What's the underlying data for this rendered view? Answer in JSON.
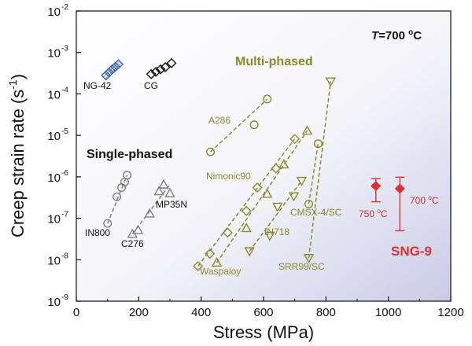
{
  "chart_data": {
    "type": "scatter",
    "xlabel": "Stress (MPa)",
    "ylabel_main": "Creep strain rate (s",
    "ylabel_sup": "-1",
    "ylabel_close": ")",
    "xlim": [
      0,
      1200
    ],
    "ylim_log10": [
      -9,
      -2
    ],
    "y_scale": "log",
    "x_ticks": [
      0,
      200,
      400,
      600,
      800,
      1000,
      1200
    ],
    "x_tick_labels": [
      "0",
      "200",
      "400",
      "600",
      "800",
      "1000",
      "1200"
    ],
    "y_tick_exponents": [
      -9,
      -8,
      -7,
      -6,
      -5,
      -4,
      -3,
      -2
    ],
    "y_tick_labels": [
      "10",
      "10",
      "10",
      "10",
      "10",
      "10",
      "10",
      "10"
    ],
    "y_tick_sups": [
      "-9",
      "-8",
      "-7",
      "-6",
      "-5",
      "-4",
      "-3",
      "-2"
    ],
    "annotations": {
      "temperature_T": "T",
      "temperature_rest": "=700 ",
      "temperature_o": "o",
      "temperature_c": "C",
      "multi_phased": "Multi-phased",
      "single_phased": "Single-phased",
      "sng9": "SNG-9",
      "t750": "750 ",
      "t750_o": "o",
      "t750_c": "C",
      "t700": "700 ",
      "t700_o": "o",
      "t700_c": "C"
    },
    "colors": {
      "black": "#111111",
      "blue": "#3a5fb0",
      "gray": "#808080",
      "olive": "#8a8a2a",
      "red": "#e03030",
      "red_text": "#d03030"
    },
    "series": [
      {
        "label": "NG-42",
        "marker": "diamond",
        "color": "blue",
        "fill": "hatch",
        "x": [
          95,
          105,
          115,
          125,
          135
        ],
        "y": [
          0.00028,
          0.00033,
          0.00039,
          0.00045,
          0.00052
        ]
      },
      {
        "label": "CG",
        "marker": "diamond",
        "color": "black",
        "x": [
          240,
          255,
          270,
          285,
          305
        ],
        "y": [
          0.0003,
          0.00034,
          0.00039,
          0.00044,
          0.00055
        ]
      },
      {
        "label": "A286",
        "marker": "circle",
        "color": "olive",
        "x": [
          430,
          570,
          612
        ],
        "y": [
          4e-06,
          1.8e-05,
          7.5e-05
        ]
      },
      {
        "label": "IN800",
        "marker": "circle",
        "color": "gray",
        "x": [
          100,
          130,
          145,
          155,
          163
        ],
        "y": [
          7.5e-08,
          3.3e-07,
          5.5e-07,
          7.5e-07,
          1.1e-06
        ]
      },
      {
        "label": "C276",
        "marker": "triangle-up",
        "color": "gray",
        "x": [
          180,
          198
        ],
        "y": [
          4.2e-08,
          5.2e-08
        ]
      },
      {
        "label": "MP35N",
        "marker": "triangle-up",
        "color": "gray",
        "x": [
          235,
          265,
          280,
          300
        ],
        "y": [
          1.3e-07,
          4.5e-07,
          6.5e-07,
          4e-07
        ]
      },
      {
        "label": "Nimonic90",
        "marker": "diamond",
        "color": "olive",
        "x": [
          390,
          428,
          485,
          545,
          580,
          640,
          700
        ],
        "y": [
          7e-09,
          1.4e-08,
          4.5e-08,
          1.5e-07,
          5.5e-07,
          1.6e-06,
          8.2e-06
        ]
      },
      {
        "label": "Waspaloy",
        "marker": "triangle-up",
        "color": "olive",
        "x": [
          450,
          545,
          612,
          665,
          740
        ],
        "y": [
          8.5e-09,
          5.8e-08,
          3.9e-07,
          2e-06,
          1.3e-05
        ]
      },
      {
        "label": "IN718",
        "marker": "triangle-down",
        "color": "olive",
        "x": [
          555,
          620,
          645,
          697,
          722
        ],
        "y": [
          1.6e-08,
          3.8e-08,
          1.9e-07,
          3.4e-07,
          8e-07
        ]
      },
      {
        "label": "CMSX-4/SC",
        "marker": "circle",
        "color": "olive",
        "x": [
          745,
          775
        ],
        "y": [
          2.2e-07,
          6.3e-06
        ]
      },
      {
        "label": "SRR99/SC",
        "marker": "triangle-down",
        "color": "olive",
        "x": [
          745,
          815
        ],
        "y": [
          1.1e-08,
          0.0002
        ]
      },
      {
        "label": "SNG-9 750",
        "marker": "diamond",
        "color": "red",
        "fill": "solid",
        "x": [
          960
        ],
        "y": [
          6e-07
        ],
        "err_low": [
          2.5e-07
        ],
        "err_high": [
          9e-07
        ]
      },
      {
        "label": "SNG-9 700",
        "marker": "diamond",
        "color": "red",
        "fill": "solid",
        "x": [
          1037
        ],
        "y": [
          5.2e-07
        ],
        "err_low": [
          5e-08
        ],
        "err_high": [
          9.8e-07
        ]
      }
    ],
    "fit_lines": [
      {
        "color": "gray",
        "x": [
          100,
          163
        ],
        "y": [
          7.5e-08,
          1.1e-06
        ]
      },
      {
        "color": "gray",
        "x": [
          180,
          300
        ],
        "y": [
          4.2e-08,
          6.5e-07
        ]
      },
      {
        "color": "olive",
        "x": [
          430,
          612
        ],
        "y": [
          4e-06,
          7.5e-05
        ]
      },
      {
        "color": "olive",
        "x": [
          390,
          700
        ],
        "y": [
          7e-09,
          8.2e-06
        ]
      },
      {
        "color": "olive",
        "x": [
          450,
          740
        ],
        "y": [
          8.5e-09,
          1.3e-05
        ]
      },
      {
        "color": "olive",
        "x": [
          555,
          722
        ],
        "y": [
          1.6e-08,
          8e-07
        ]
      },
      {
        "color": "olive",
        "x": [
          745,
          775
        ],
        "y": [
          2.2e-07,
          6.3e-06
        ]
      },
      {
        "color": "olive",
        "x": [
          745,
          815
        ],
        "y": [
          1.1e-08,
          0.0002
        ]
      }
    ]
  }
}
